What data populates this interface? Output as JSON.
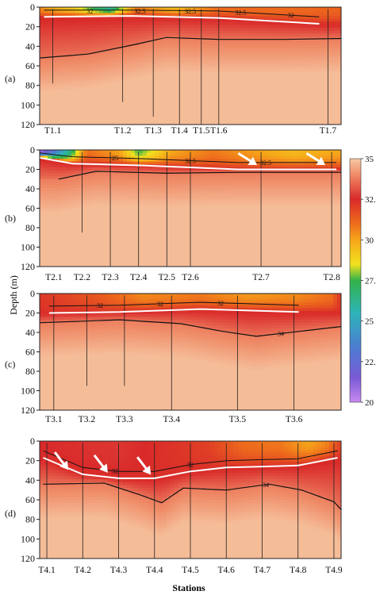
{
  "figure": {
    "ylabel": "Depth (m)",
    "xlabel": "Stations"
  },
  "colorbar": {
    "ticks": [
      "35",
      "32.5",
      "30",
      "27.5",
      "25",
      "22.5",
      "20"
    ],
    "stops": [
      {
        "value": 35,
        "color": "#f7c8a4"
      },
      {
        "value": 34,
        "color": "#ef8a66"
      },
      {
        "value": 32.5,
        "color": "#d92a2a"
      },
      {
        "value": 31,
        "color": "#ee6c1c"
      },
      {
        "value": 30,
        "color": "#f6a61a"
      },
      {
        "value": 28.5,
        "color": "#f2e11e"
      },
      {
        "value": 27.5,
        "color": "#33b24a"
      },
      {
        "value": 25.5,
        "color": "#2eb4b8"
      },
      {
        "value": 23.5,
        "color": "#4a7fd0"
      },
      {
        "value": 21.5,
        "color": "#7a5ad6"
      },
      {
        "value": 20,
        "color": "#c98af0"
      }
    ]
  },
  "chart_data": [
    {
      "type": "heatmap",
      "panel_label": "(a)",
      "y_ticks": [
        "0",
        "20",
        "40",
        "60",
        "80",
        "100",
        "120"
      ],
      "ylim": [
        0,
        120
      ],
      "x_range": [
        0.4,
        7.3
      ],
      "stations": [
        {
          "label": "T1.1",
          "x": 0.7,
          "cast_bottom": 78
        },
        {
          "label": "T1.2",
          "x": 2.3,
          "cast_bottom": 97
        },
        {
          "label": "T1.3",
          "x": 3.0,
          "cast_bottom": 112
        },
        {
          "label": "T1.4",
          "x": 3.6,
          "cast_bottom": 120
        },
        {
          "label": "T1.5",
          "x": 4.1,
          "cast_bottom": 120
        },
        {
          "label": "T1.6",
          "x": 4.5,
          "cast_bottom": 120
        },
        {
          "label": "T1.7",
          "x": 7.0,
          "cast_bottom": 120
        }
      ],
      "isohaline_labels": [
        "32",
        "32.5",
        "32.5",
        "32.5",
        "32"
      ],
      "mixed_layer_depth": [
        [
          0.5,
          10
        ],
        [
          2.5,
          9
        ],
        [
          4.5,
          11
        ],
        [
          6.8,
          17
        ]
      ],
      "isohaline_34_depth": [
        [
          0.4,
          52
        ],
        [
          1.5,
          48
        ],
        [
          2.6,
          38
        ],
        [
          3.3,
          31
        ],
        [
          4.5,
          33
        ],
        [
          6.0,
          33
        ],
        [
          7.3,
          32
        ]
      ],
      "surface_salinity": [
        [
          0.4,
          30.5
        ],
        [
          1.2,
          29
        ],
        [
          2.0,
          26
        ],
        [
          2.6,
          30.8
        ],
        [
          3.5,
          29.5
        ],
        [
          4.5,
          31
        ],
        [
          6,
          31
        ],
        [
          7.3,
          31.2
        ]
      ],
      "deep_salinity": 34.8
    },
    {
      "type": "heatmap",
      "panel_label": "(b)",
      "y_ticks": [
        "0",
        "20",
        "40",
        "60",
        "80",
        "100",
        "120"
      ],
      "ylim": [
        0,
        120
      ],
      "x_range": [
        1.8,
        8.2
      ],
      "stations": [
        {
          "label": "T2.1",
          "x": 2.1,
          "cast_bottom": 0
        },
        {
          "label": "T2.2",
          "x": 2.7,
          "cast_bottom": 85
        },
        {
          "label": "T2.3",
          "x": 3.3,
          "cast_bottom": 120
        },
        {
          "label": "T2.4",
          "x": 3.9,
          "cast_bottom": 120
        },
        {
          "label": "T2.5",
          "x": 4.5,
          "cast_bottom": 120
        },
        {
          "label": "T2.6",
          "x": 5.0,
          "cast_bottom": 120
        },
        {
          "label": "T2.7",
          "x": 6.5,
          "cast_bottom": 120
        },
        {
          "label": "T2.8",
          "x": 8.0,
          "cast_bottom": 120
        }
      ],
      "isohaline_labels": [
        "25",
        "32.5",
        "32.5"
      ],
      "mixed_layer_depth": [
        [
          1.8,
          8
        ],
        [
          2.5,
          14
        ],
        [
          4,
          16
        ],
        [
          6,
          20
        ],
        [
          8.1,
          20
        ]
      ],
      "isohaline_34_depth": [
        [
          2.2,
          30
        ],
        [
          3.0,
          22
        ],
        [
          4.5,
          24
        ],
        [
          6.0,
          23
        ],
        [
          8.2,
          23
        ]
      ],
      "surface_salinity": [
        [
          1.8,
          20.5
        ],
        [
          2.1,
          23
        ],
        [
          2.4,
          26
        ],
        [
          2.8,
          31
        ],
        [
          3.5,
          30
        ],
        [
          3.9,
          27.5
        ],
        [
          4.6,
          30
        ],
        [
          5.5,
          30.8
        ],
        [
          6.5,
          30
        ],
        [
          7.2,
          29.5
        ],
        [
          8.2,
          30
        ]
      ],
      "deep_salinity": 34.8
    },
    {
      "type": "heatmap",
      "panel_label": "(c)",
      "y_ticks": [
        "0",
        "20",
        "40",
        "60",
        "80",
        "100",
        "120"
      ],
      "ylim": [
        0,
        120
      ],
      "x_range": [
        0.8,
        7.2
      ],
      "stations": [
        {
          "label": "T3.1",
          "x": 1.1,
          "cast_bottom": 120
        },
        {
          "label": "T3.2",
          "x": 1.8,
          "cast_bottom": 95
        },
        {
          "label": "T3.3",
          "x": 2.6,
          "cast_bottom": 95
        },
        {
          "label": "T3.4",
          "x": 3.6,
          "cast_bottom": 120
        },
        {
          "label": "T3.5",
          "x": 5.0,
          "cast_bottom": 120
        },
        {
          "label": "T3.6",
          "x": 6.2,
          "cast_bottom": 120
        }
      ],
      "isohaline_labels": [
        "32",
        "32",
        "32",
        "34"
      ],
      "mixed_layer_depth": [
        [
          1.0,
          20
        ],
        [
          2.5,
          19
        ],
        [
          4.2,
          16
        ],
        [
          6.3,
          19
        ]
      ],
      "isohaline_34_depth": [
        [
          0.8,
          30
        ],
        [
          2.5,
          27
        ],
        [
          3.8,
          31
        ],
        [
          4.7,
          39
        ],
        [
          5.4,
          44
        ],
        [
          6.3,
          39
        ],
        [
          7.2,
          34
        ]
      ],
      "surface_salinity": [
        [
          0.8,
          32.2
        ],
        [
          2.0,
          31.5
        ],
        [
          3.0,
          30.5
        ],
        [
          4.2,
          30.8
        ],
        [
          5.2,
          30.2
        ],
        [
          6.3,
          30.5
        ],
        [
          7.0,
          31.0
        ],
        [
          7.2,
          32.3
        ]
      ],
      "deep_salinity": 34.8
    },
    {
      "type": "heatmap",
      "panel_label": "(d)",
      "y_ticks": [
        "0",
        "20",
        "40",
        "60",
        "80",
        "100",
        "120"
      ],
      "ylim": [
        0,
        120
      ],
      "x_range": [
        0.8,
        9.2
      ],
      "stations": [
        {
          "label": "T4.1",
          "x": 1.0,
          "cast_bottom": 120
        },
        {
          "label": "T4.2",
          "x": 2.0,
          "cast_bottom": 120
        },
        {
          "label": "T4.3",
          "x": 3.0,
          "cast_bottom": 120
        },
        {
          "label": "T4.4",
          "x": 4.0,
          "cast_bottom": 120
        },
        {
          "label": "T4.5",
          "x": 5.0,
          "cast_bottom": 120
        },
        {
          "label": "T4.6",
          "x": 6.0,
          "cast_bottom": 120
        },
        {
          "label": "T4.7",
          "x": 7.0,
          "cast_bottom": 120
        },
        {
          "label": "T4.8",
          "x": 8.0,
          "cast_bottom": 120
        },
        {
          "label": "T4.9",
          "x": 9.0,
          "cast_bottom": 120
        }
      ],
      "isohaline_labels": [
        "32",
        "32",
        "34"
      ],
      "mixed_layer_depth": [
        [
          0.9,
          17
        ],
        [
          2.0,
          34
        ],
        [
          3.0,
          38
        ],
        [
          4.0,
          38
        ],
        [
          5.0,
          31
        ],
        [
          6.0,
          27
        ],
        [
          7.0,
          26
        ],
        [
          8.0,
          25
        ],
        [
          9.1,
          17
        ]
      ],
      "isohaline_34_depth": [
        [
          0.9,
          44
        ],
        [
          2.6,
          43
        ],
        [
          3.6,
          55
        ],
        [
          4.2,
          63
        ],
        [
          4.8,
          48
        ],
        [
          6.0,
          50
        ],
        [
          7.2,
          44
        ],
        [
          8.1,
          50
        ],
        [
          9.0,
          62
        ],
        [
          9.2,
          70
        ]
      ],
      "surface_salinity": [
        [
          0.8,
          32.5
        ],
        [
          3,
          32.7
        ],
        [
          5.5,
          32
        ],
        [
          6.5,
          31
        ],
        [
          7.5,
          30.8
        ],
        [
          8.3,
          30
        ],
        [
          8.8,
          30.6
        ],
        [
          9.2,
          32
        ]
      ],
      "deep_salinity": 34.8
    }
  ]
}
